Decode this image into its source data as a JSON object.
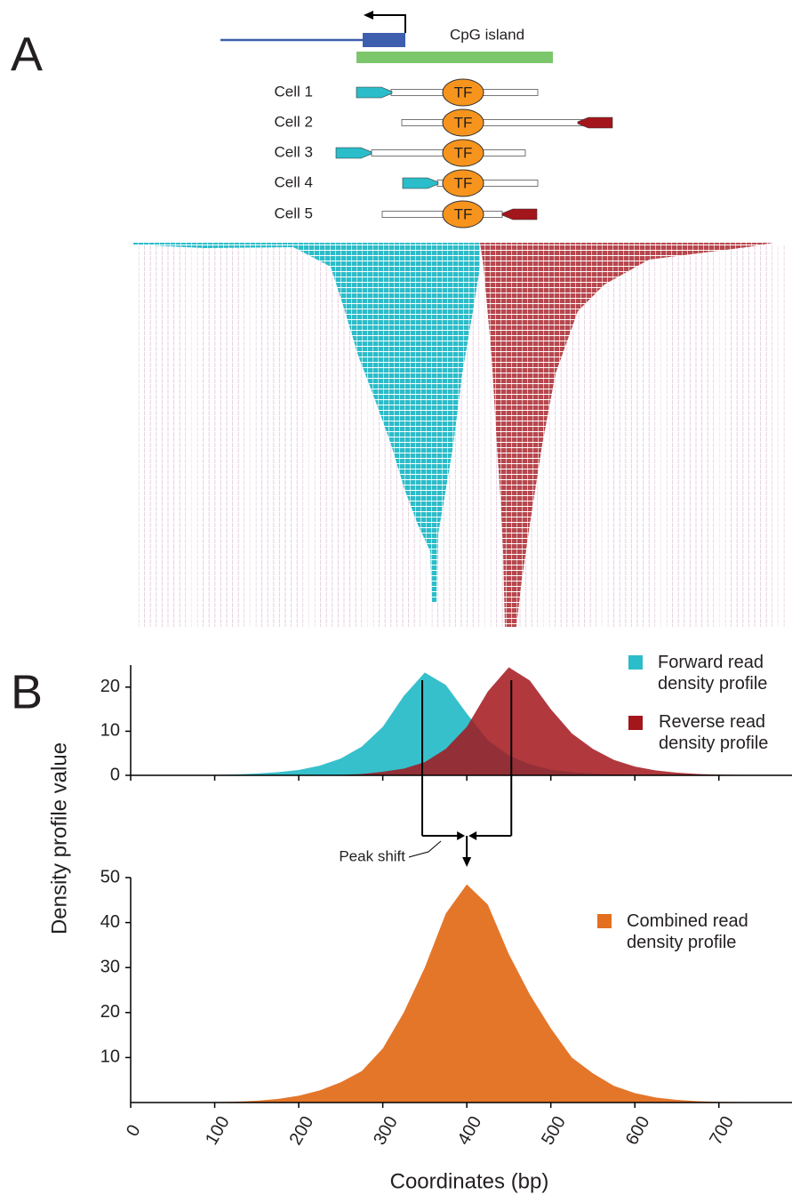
{
  "panel_a": {
    "label": "A",
    "cpg_label": "CpG island",
    "cells": [
      {
        "label": "Cell 1",
        "factor": "TF"
      },
      {
        "label": "Cell 2",
        "factor": "TF"
      },
      {
        "label": "Cell 3",
        "factor": "TF"
      },
      {
        "label": "Cell 4",
        "factor": "TF"
      },
      {
        "label": "Cell 5",
        "factor": "TF"
      }
    ]
  },
  "panel_b": {
    "label": "B",
    "y_label": "Density profile value",
    "x_label": "Coordinates (bp)",
    "annotation": "Peak shift"
  },
  "chart_data": [
    {
      "type": "area",
      "x": [
        0,
        25,
        50,
        75,
        100,
        125,
        150,
        175,
        200,
        225,
        250,
        275,
        300,
        325,
        350,
        375,
        400,
        425,
        450,
        475,
        500,
        525,
        550,
        575,
        600,
        625,
        650,
        675,
        700,
        725,
        750,
        775
      ],
      "series": [
        {
          "name": "Forward read density profile",
          "color": "#2bbdc9",
          "values": [
            0,
            0,
            0,
            0.1,
            0.1,
            0.2,
            0.4,
            0.7,
            1.2,
            2.2,
            3.8,
            6.5,
            11,
            18,
            23.3,
            20.5,
            14,
            8,
            4.5,
            2.5,
            1.3,
            0.7,
            0.4,
            0.2,
            0.1,
            0,
            0,
            0,
            0,
            0,
            0,
            0
          ]
        },
        {
          "name": "Reverse read density profile",
          "color": "#a3161c",
          "values": [
            0,
            0,
            0,
            0,
            0,
            0,
            0,
            0,
            0,
            0,
            0.1,
            0.3,
            0.8,
            1.5,
            3,
            6,
            11,
            19,
            24.5,
            21.5,
            15,
            9.5,
            6,
            3.5,
            2,
            1.1,
            0.6,
            0.3,
            0.15,
            0.1,
            0,
            0
          ]
        }
      ],
      "peaks": [
        347,
        453
      ],
      "xlim": [
        0,
        787
      ],
      "ylim": [
        0,
        25
      ],
      "yticks": [
        0,
        10,
        20
      ]
    },
    {
      "type": "area",
      "x": [
        0,
        25,
        50,
        75,
        100,
        125,
        150,
        175,
        200,
        225,
        250,
        275,
        300,
        325,
        350,
        375,
        400,
        425,
        450,
        475,
        500,
        525,
        550,
        575,
        600,
        625,
        650,
        675,
        700,
        725,
        750,
        775
      ],
      "series": [
        {
          "name": "Combined read density profile",
          "color": "#e36f1f",
          "values": [
            0,
            0,
            0,
            0.1,
            0.1,
            0.2,
            0.4,
            0.8,
            1.5,
            2.7,
            4.5,
            7,
            12,
            20,
            30,
            42,
            48.5,
            44,
            33,
            24,
            16.5,
            10,
            6.5,
            3.7,
            2.1,
            1.1,
            0.6,
            0.3,
            0.15,
            0.1,
            0,
            0
          ]
        }
      ],
      "xlim": [
        0,
        787
      ],
      "ylim": [
        0,
        50
      ],
      "yticks": [
        10,
        20,
        30,
        40,
        50
      ],
      "xticks": [
        0,
        100,
        200,
        300,
        400,
        500,
        600,
        700
      ]
    }
  ]
}
